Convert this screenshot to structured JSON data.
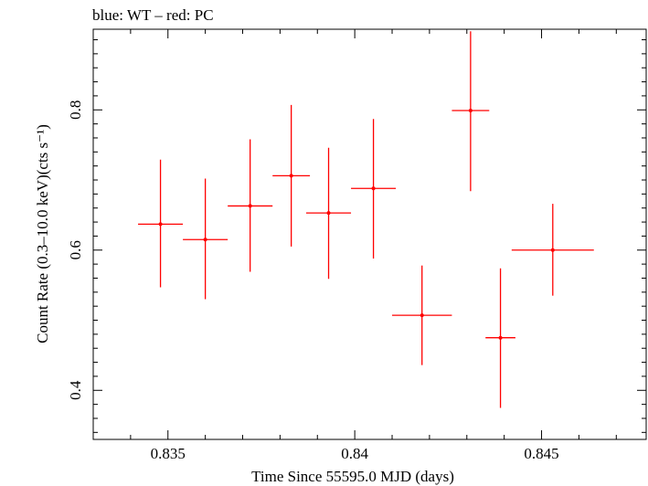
{
  "chart_data": {
    "type": "scatter",
    "title": "blue: WT – red: PC",
    "xlabel": "Time Since 55595.0 MJD (days)",
    "ylabel": "Count Rate (0.3–10.0 keV)(cts s⁻¹)",
    "xlim": [
      0.833,
      0.8478
    ],
    "ylim": [
      0.33,
      0.915
    ],
    "x_ticks": [
      {
        "value": 0.835,
        "label": "0.835"
      },
      {
        "value": 0.84,
        "label": "0.84"
      },
      {
        "value": 0.845,
        "label": "0.845"
      }
    ],
    "y_ticks": [
      {
        "value": 0.4,
        "label": "0.4"
      },
      {
        "value": 0.6,
        "label": "0.6"
      },
      {
        "value": 0.8,
        "label": "0.8"
      }
    ],
    "grid": false,
    "series": [
      {
        "color": "#ff0000",
        "points": [
          {
            "x": 0.8348,
            "xerr": 0.0006,
            "y": 0.637,
            "yerr_low": 0.09,
            "yerr_high": 0.092
          },
          {
            "x": 0.836,
            "xerr": 0.0006,
            "y": 0.615,
            "yerr_low": 0.085,
            "yerr_high": 0.087
          },
          {
            "x": 0.8372,
            "xerr": 0.0006,
            "y": 0.663,
            "yerr_low": 0.094,
            "yerr_high": 0.095
          },
          {
            "x": 0.8383,
            "xerr": 0.0005,
            "y": 0.706,
            "yerr_low": 0.101,
            "yerr_high": 0.101
          },
          {
            "x": 0.8393,
            "xerr": 0.0006,
            "y": 0.653,
            "yerr_low": 0.094,
            "yerr_high": 0.093
          },
          {
            "x": 0.8405,
            "xerr": 0.0006,
            "y": 0.688,
            "yerr_low": 0.1,
            "yerr_high": 0.099
          },
          {
            "x": 0.8418,
            "xerr": 0.0008,
            "y": 0.507,
            "yerr_low": 0.071,
            "yerr_high": 0.071
          },
          {
            "x": 0.8431,
            "xerr": 0.0005,
            "y": 0.799,
            "yerr_low": 0.115,
            "yerr_high": 0.113
          },
          {
            "x": 0.8439,
            "xerr": 0.0004,
            "y": 0.475,
            "yerr_low": 0.1,
            "yerr_high": 0.099
          },
          {
            "x": 0.8453,
            "xerr": 0.0011,
            "y": 0.6,
            "yerr_low": 0.065,
            "yerr_high": 0.066
          }
        ]
      }
    ]
  }
}
